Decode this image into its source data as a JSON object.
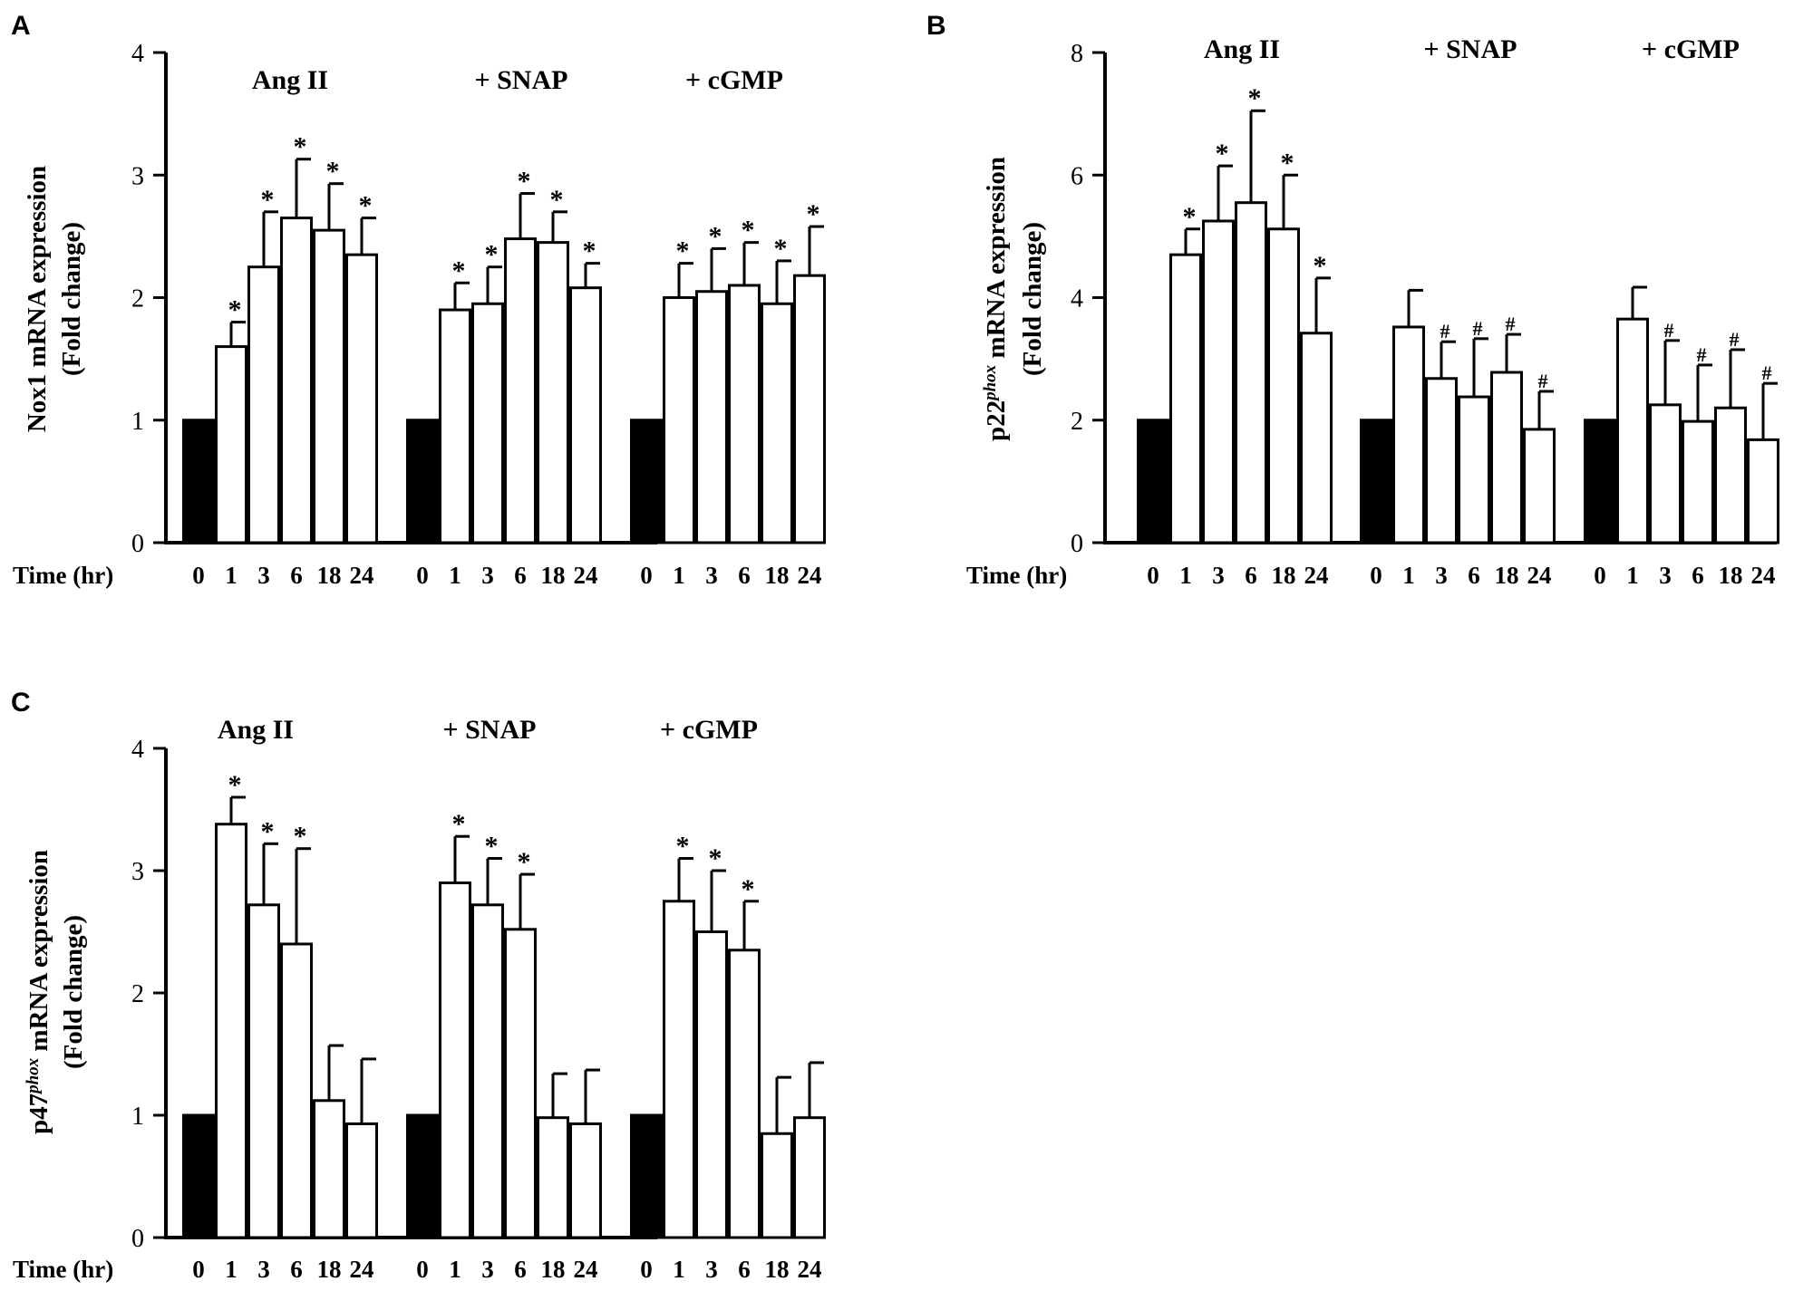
{
  "chart_data": [
    {
      "type": "bar",
      "panel_label": "A",
      "ylabel_line1": "Nox1 mRNA expression",
      "ylabel_line2": "(Fold change)",
      "xlabel": "Time (hr)",
      "ylim": [
        0,
        4
      ],
      "yticks": [
        "0",
        "1",
        "2",
        "3",
        "4"
      ],
      "tick_values": [
        0,
        1,
        2,
        3,
        4
      ],
      "groups": [
        {
          "name": "Ang II",
          "categories": [
            "0",
            "1",
            "3",
            "6",
            "18",
            "24"
          ],
          "values": [
            1.0,
            1.6,
            2.25,
            2.65,
            2.55,
            2.35
          ],
          "errors": [
            0,
            0.2,
            0.45,
            0.48,
            0.38,
            0.3
          ],
          "marks": [
            "",
            "*",
            "*",
            "*",
            "*",
            "*"
          ]
        },
        {
          "name": "+ SNAP",
          "categories": [
            "0",
            "1",
            "3",
            "6",
            "18",
            "24"
          ],
          "values": [
            1.0,
            1.9,
            1.95,
            2.48,
            2.45,
            2.08
          ],
          "errors": [
            0,
            0.22,
            0.3,
            0.37,
            0.25,
            0.2
          ],
          "marks": [
            "",
            "*",
            "*",
            "*",
            "*",
            "*"
          ]
        },
        {
          "name": "+ cGMP",
          "categories": [
            "0",
            "1",
            "3",
            "6",
            "18",
            "24"
          ],
          "values": [
            1.0,
            2.0,
            2.05,
            2.1,
            1.95,
            2.18
          ],
          "errors": [
            0,
            0.28,
            0.35,
            0.35,
            0.35,
            0.4
          ],
          "marks": [
            "",
            "*",
            "*",
            "*",
            "*",
            "*"
          ]
        }
      ]
    },
    {
      "type": "bar",
      "panel_label": "B",
      "ylabel_prefix": "p22",
      "ylabel_sup": "phox",
      "ylabel_rest": " mRNA expression",
      "ylabel_line2": "(Fold change)",
      "xlabel": "Time (hr)",
      "ylim": [
        0,
        8
      ],
      "yticks": [
        "0",
        "2",
        "4",
        "6",
        "8"
      ],
      "tick_values": [
        0,
        2,
        4,
        6,
        8
      ],
      "groups": [
        {
          "name": "Ang II",
          "categories": [
            "0",
            "1",
            "3",
            "6",
            "18",
            "24"
          ],
          "values": [
            2.0,
            4.7,
            5.25,
            5.55,
            5.12,
            3.42
          ],
          "errors": [
            0,
            0.42,
            0.9,
            1.5,
            0.88,
            0.9
          ],
          "marks": [
            "",
            "*",
            "*",
            "*",
            "*",
            "*"
          ]
        },
        {
          "name": "+ SNAP",
          "categories": [
            "0",
            "1",
            "3",
            "6",
            "18",
            "24"
          ],
          "values": [
            2.0,
            3.52,
            2.68,
            2.38,
            2.78,
            1.85
          ],
          "errors": [
            0,
            0.6,
            0.6,
            0.95,
            0.62,
            0.62
          ],
          "marks": [
            "",
            "",
            "#",
            "#",
            "#",
            "#"
          ]
        },
        {
          "name": "+ cGMP",
          "categories": [
            "0",
            "1",
            "3",
            "6",
            "18",
            "24"
          ],
          "values": [
            2.0,
            3.65,
            2.25,
            1.98,
            2.2,
            1.68
          ],
          "errors": [
            0,
            0.52,
            1.05,
            0.92,
            0.95,
            0.92
          ],
          "marks": [
            "",
            "",
            "#",
            "#",
            "#",
            "#"
          ]
        }
      ]
    },
    {
      "type": "bar",
      "panel_label": "C",
      "ylabel_prefix": "p47",
      "ylabel_sup": "phox",
      "ylabel_rest": " mRNA expression",
      "ylabel_line2": "(Fold change)",
      "xlabel": "Time (hr)",
      "ylim": [
        0,
        4
      ],
      "yticks": [
        "0",
        "1",
        "2",
        "3",
        "4"
      ],
      "tick_values": [
        0,
        1,
        2,
        3,
        4
      ],
      "groups": [
        {
          "name": "Ang II",
          "categories": [
            "0",
            "1",
            "3",
            "6",
            "18",
            "24"
          ],
          "values": [
            1.0,
            3.38,
            2.72,
            2.4,
            1.12,
            0.93
          ],
          "errors": [
            0,
            0.22,
            0.5,
            0.78,
            0.45,
            0.53
          ],
          "marks": [
            "",
            "*",
            "*",
            "*",
            "",
            ""
          ]
        },
        {
          "name": "+ SNAP",
          "categories": [
            "0",
            "1",
            "3",
            "6",
            "18",
            "24"
          ],
          "values": [
            1.0,
            2.9,
            2.72,
            2.52,
            0.98,
            0.93
          ],
          "errors": [
            0,
            0.38,
            0.38,
            0.45,
            0.36,
            0.44
          ],
          "marks": [
            "",
            "*",
            "*",
            "*",
            "",
            ""
          ]
        },
        {
          "name": "+ cGMP",
          "categories": [
            "0",
            "1",
            "3",
            "6",
            "18",
            "24"
          ],
          "values": [
            1.0,
            2.75,
            2.5,
            2.35,
            0.85,
            0.98
          ],
          "errors": [
            0,
            0.35,
            0.5,
            0.4,
            0.46,
            0.45
          ],
          "marks": [
            "",
            "*",
            "*",
            "*",
            "",
            ""
          ]
        }
      ]
    }
  ]
}
